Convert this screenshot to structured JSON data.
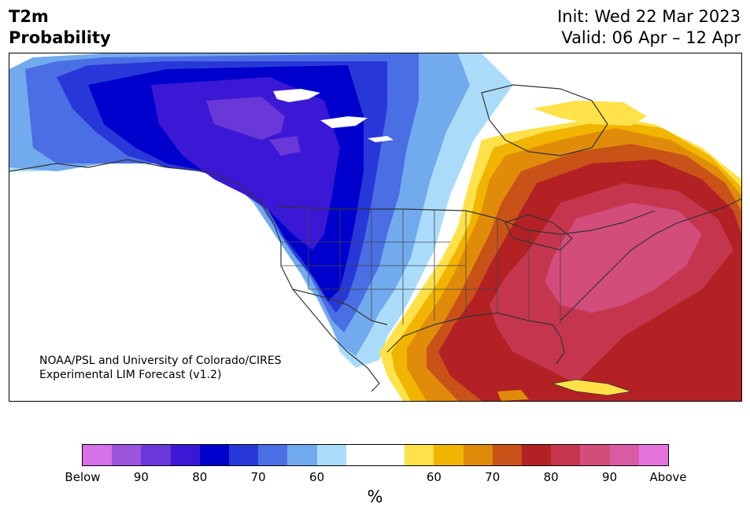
{
  "title": {
    "variable": "T2m",
    "metric": "Probability"
  },
  "dates": {
    "init": "Init: Wed 22 Mar 2023",
    "valid": "Valid: 06 Apr – 12 Apr"
  },
  "credit": {
    "line1": "NOAA/PSL and University of Colorado/CIRES",
    "line2": "Experimental LIM Forecast (v1.2)"
  },
  "colorbar": {
    "unit": "%",
    "colors": [
      "#d671e8",
      "#9b55dd",
      "#6a38d8",
      "#3a18d5",
      "#0000cc",
      "#2838d8",
      "#4a6ee4",
      "#72aaee",
      "#aadcfa",
      "#ffffff",
      "#ffffff",
      "#ffe14a",
      "#f1b400",
      "#e08c0a",
      "#c95218",
      "#b32124",
      "#c5364e",
      "#d24c7c",
      "#d95ba4",
      "#e674de"
    ],
    "ticks": [
      "Below",
      "90",
      "80",
      "70",
      "60",
      "60",
      "70",
      "80",
      "90",
      "Above"
    ]
  }
}
